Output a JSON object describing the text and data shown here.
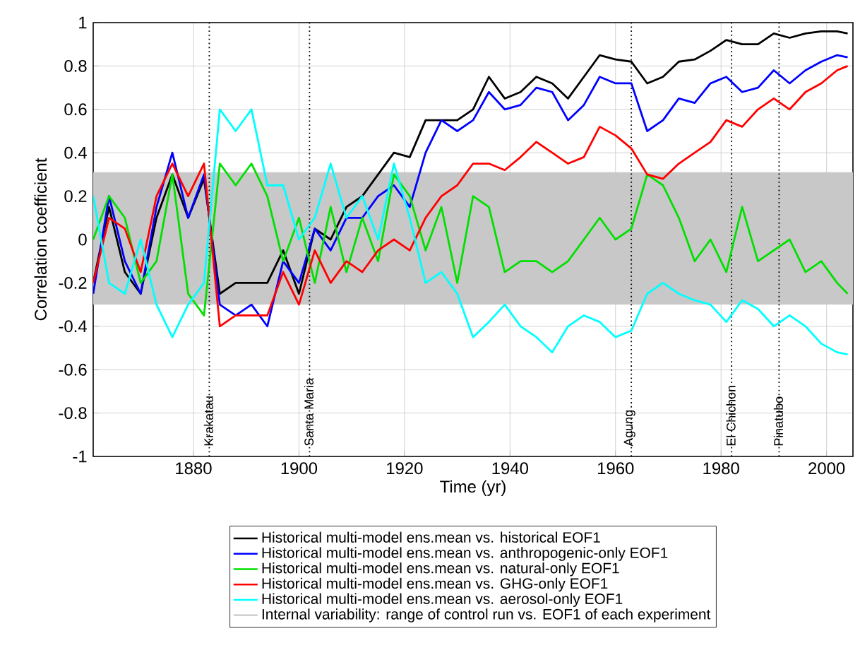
{
  "chart_data": {
    "type": "line",
    "xlabel": "Time (yr)",
    "ylabel": "Correlation coefficient",
    "x": [
      1861,
      1864,
      1867,
      1870,
      1873,
      1876,
      1879,
      1882,
      1885,
      1888,
      1891,
      1894,
      1897,
      1900,
      1903,
      1906,
      1909,
      1912,
      1915,
      1918,
      1921,
      1924,
      1927,
      1930,
      1933,
      1936,
      1939,
      1942,
      1945,
      1948,
      1951,
      1954,
      1957,
      1960,
      1963,
      1966,
      1969,
      1972,
      1975,
      1978,
      1981,
      1984,
      1987,
      1990,
      1993,
      1996,
      1999,
      2002,
      2004
    ],
    "series": [
      {
        "name": "Historical multi-model ens.mean vs. historical EOF1",
        "color": "#000000",
        "values": [
          -0.2,
          0.15,
          -0.15,
          -0.25,
          0.1,
          0.3,
          0.1,
          0.28,
          -0.25,
          -0.2,
          -0.2,
          -0.2,
          -0.05,
          -0.25,
          0.05,
          0.0,
          0.15,
          0.2,
          0.3,
          0.4,
          0.38,
          0.55,
          0.55,
          0.55,
          0.6,
          0.75,
          0.65,
          0.68,
          0.75,
          0.72,
          0.65,
          0.75,
          0.85,
          0.83,
          0.82,
          0.72,
          0.75,
          0.82,
          0.83,
          0.87,
          0.92,
          0.9,
          0.9,
          0.95,
          0.93,
          0.95,
          0.96,
          0.96,
          0.95
        ]
      },
      {
        "name": "Historical multi-model ens.mean vs. anthropogenic-only EOF1",
        "color": "#0000ff",
        "values": [
          -0.25,
          0.2,
          -0.1,
          -0.25,
          0.15,
          0.4,
          0.1,
          0.3,
          -0.3,
          -0.35,
          -0.3,
          -0.4,
          -0.1,
          -0.2,
          0.05,
          -0.05,
          0.1,
          0.1,
          0.2,
          0.25,
          0.15,
          0.4,
          0.55,
          0.5,
          0.55,
          0.68,
          0.6,
          0.62,
          0.7,
          0.68,
          0.55,
          0.62,
          0.75,
          0.72,
          0.72,
          0.5,
          0.55,
          0.65,
          0.63,
          0.72,
          0.75,
          0.68,
          0.7,
          0.78,
          0.72,
          0.78,
          0.82,
          0.85,
          0.84
        ]
      },
      {
        "name": "Historical multi-model ens.mean vs. natural-only EOF1",
        "color": "#00e000",
        "values": [
          0.0,
          0.2,
          0.1,
          -0.2,
          -0.1,
          0.3,
          -0.25,
          -0.35,
          0.35,
          0.25,
          0.35,
          0.2,
          -0.1,
          0.1,
          -0.2,
          0.15,
          -0.15,
          0.1,
          -0.1,
          0.3,
          0.2,
          -0.05,
          0.15,
          -0.2,
          0.2,
          0.15,
          -0.15,
          -0.1,
          -0.1,
          -0.15,
          -0.1,
          0.0,
          0.1,
          0.0,
          0.05,
          0.3,
          0.25,
          0.1,
          -0.1,
          0.0,
          -0.15,
          0.15,
          -0.1,
          -0.05,
          0.0,
          -0.15,
          -0.1,
          -0.2,
          -0.25
        ]
      },
      {
        "name": "Historical multi-model ens.mean vs. GHG-only EOF1",
        "color": "#ff0000",
        "values": [
          -0.2,
          0.1,
          0.05,
          -0.15,
          0.2,
          0.35,
          0.2,
          0.35,
          -0.4,
          -0.35,
          -0.35,
          -0.35,
          -0.15,
          -0.3,
          -0.05,
          -0.2,
          -0.1,
          -0.15,
          -0.05,
          0.0,
          -0.05,
          0.1,
          0.2,
          0.25,
          0.35,
          0.35,
          0.32,
          0.38,
          0.45,
          0.4,
          0.35,
          0.38,
          0.52,
          0.48,
          0.42,
          0.3,
          0.28,
          0.35,
          0.4,
          0.45,
          0.55,
          0.52,
          0.6,
          0.65,
          0.6,
          0.68,
          0.72,
          0.78,
          0.8
        ]
      },
      {
        "name": "Historical multi-model ens.mean vs. aerosol-only EOF1",
        "color": "#00ffff",
        "values": [
          0.2,
          -0.2,
          -0.25,
          0.0,
          -0.3,
          -0.45,
          -0.3,
          -0.2,
          0.6,
          0.5,
          0.6,
          0.25,
          0.25,
          0.0,
          0.1,
          0.35,
          0.1,
          0.2,
          0.0,
          0.35,
          0.1,
          -0.2,
          -0.15,
          -0.25,
          -0.45,
          -0.38,
          -0.3,
          -0.4,
          -0.45,
          -0.52,
          -0.4,
          -0.35,
          -0.38,
          -0.45,
          -0.42,
          -0.25,
          -0.2,
          -0.25,
          -0.28,
          -0.3,
          -0.38,
          -0.28,
          -0.32,
          -0.4,
          -0.35,
          -0.4,
          -0.48,
          -0.52,
          -0.53
        ]
      }
    ],
    "bands": [
      {
        "axis": "y",
        "from": -0.3,
        "to": 0.31,
        "label": "Internal variability: range of control run vs. EOF1 of each experiment",
        "color": "#c8c8c8"
      }
    ],
    "ref_lines": [
      {
        "axis": "x",
        "value": 1883,
        "label": "Krakatau",
        "line_style": "dotted"
      },
      {
        "axis": "x",
        "value": 1902,
        "label": "Santa Maria",
        "line_style": "dotted"
      },
      {
        "axis": "x",
        "value": 1963,
        "label": "Agung",
        "line_style": "dotted"
      },
      {
        "axis": "x",
        "value": 1982,
        "label": "El Chichon",
        "line_style": "dotted"
      },
      {
        "axis": "x",
        "value": 1991,
        "label": "Pinatubo",
        "line_style": "dotted"
      }
    ],
    "xlim": [
      1861,
      2005
    ],
    "ylim": [
      -1,
      1
    ],
    "xticks": [
      1880,
      1900,
      1920,
      1940,
      1960,
      1980,
      2000
    ],
    "yticks": [
      -1,
      -0.8,
      -0.6,
      -0.4,
      -0.2,
      0,
      0.2,
      0.4,
      0.6,
      0.8,
      1
    ],
    "grid": true,
    "legend": "bottom",
    "marker": "none",
    "line_style": "solid"
  }
}
